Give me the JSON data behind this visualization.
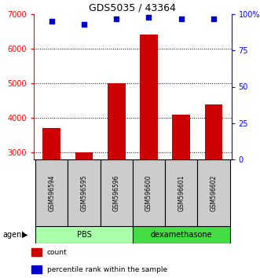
{
  "title": "GDS5035 / 43364",
  "samples": [
    "GSM596594",
    "GSM596595",
    "GSM596596",
    "GSM596600",
    "GSM596601",
    "GSM596602"
  ],
  "counts": [
    3700,
    3000,
    5000,
    6400,
    4100,
    4400
  ],
  "percentiles": [
    95,
    93,
    97,
    98,
    97,
    97
  ],
  "ylim_left": [
    2800,
    7000
  ],
  "ylim_right": [
    0,
    100
  ],
  "yticks_left": [
    3000,
    4000,
    5000,
    6000,
    7000
  ],
  "ytick_labels_left": [
    "3000",
    "4000",
    "5000",
    "6000",
    "7000"
  ],
  "yticks_right": [
    0,
    25,
    50,
    75,
    100
  ],
  "ytick_labels_right": [
    "0",
    "25",
    "50",
    "75",
    "100%"
  ],
  "bar_color": "#cc0000",
  "dot_color": "#0000cc",
  "groups": [
    {
      "label": "PBS",
      "start": 0,
      "end": 3,
      "color": "#aaffaa"
    },
    {
      "label": "dexamethasone",
      "start": 3,
      "end": 6,
      "color": "#44dd44"
    }
  ],
  "agent_label": "agent",
  "legend_items": [
    {
      "label": "count",
      "color": "#cc0000"
    },
    {
      "label": "percentile rank within the sample",
      "color": "#0000cc"
    }
  ],
  "sample_box_color": "#cccccc",
  "bar_bottom": 2800,
  "xlim": [
    -0.55,
    5.55
  ]
}
